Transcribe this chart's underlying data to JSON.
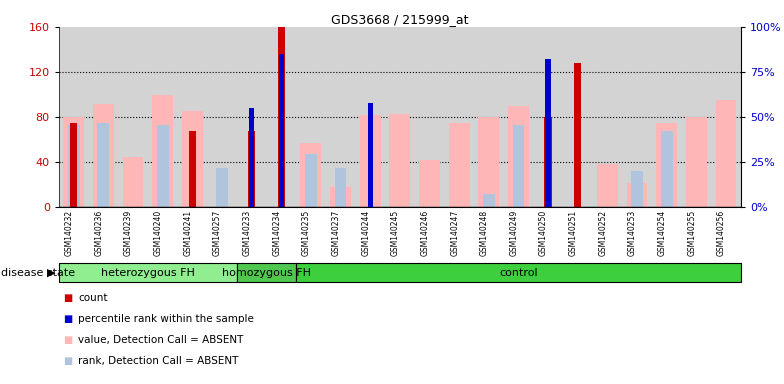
{
  "title": "GDS3668 / 215999_at",
  "samples": [
    "GSM140232",
    "GSM140236",
    "GSM140239",
    "GSM140240",
    "GSM140241",
    "GSM140257",
    "GSM140233",
    "GSM140234",
    "GSM140235",
    "GSM140237",
    "GSM140244",
    "GSM140245",
    "GSM140246",
    "GSM140247",
    "GSM140248",
    "GSM140249",
    "GSM140250",
    "GSM140251",
    "GSM140252",
    "GSM140253",
    "GSM140254",
    "GSM140255",
    "GSM140256"
  ],
  "groups": [
    {
      "label": "heterozygous FH",
      "start": 0,
      "end": 6,
      "color": "#90ee90"
    },
    {
      "label": "homozygous FH",
      "start": 6,
      "end": 8,
      "color": "#50c850"
    },
    {
      "label": "control",
      "start": 8,
      "end": 23,
      "color": "#3ecf3e"
    }
  ],
  "count_values": [
    75,
    0,
    0,
    0,
    68,
    0,
    68,
    160,
    0,
    0,
    0,
    0,
    0,
    0,
    0,
    0,
    80,
    128,
    0,
    0,
    0,
    0,
    0
  ],
  "percentile_values": [
    0,
    0,
    0,
    0,
    0,
    0,
    55,
    85,
    0,
    0,
    58,
    0,
    0,
    0,
    0,
    0,
    82,
    0,
    0,
    0,
    0,
    0,
    0
  ],
  "value_absent": [
    80,
    92,
    45,
    100,
    85,
    0,
    0,
    0,
    57,
    18,
    82,
    83,
    42,
    75,
    80,
    90,
    0,
    0,
    38,
    22,
    75,
    80,
    95
  ],
  "rank_absent": [
    73,
    75,
    0,
    73,
    0,
    35,
    0,
    0,
    47,
    35,
    0,
    0,
    0,
    0,
    12,
    73,
    0,
    0,
    0,
    32,
    68,
    0,
    0
  ],
  "left_ylim": [
    0,
    160
  ],
  "right_ylim": [
    0,
    100
  ],
  "left_yticks": [
    0,
    40,
    80,
    120,
    160
  ],
  "right_yticks": [
    0,
    25,
    50,
    75,
    100
  ],
  "left_color": "#cc0000",
  "right_color": "#0000cc",
  "count_color": "#cc0000",
  "percentile_color": "#0000cc",
  "value_absent_color": "#ffb6b6",
  "rank_absent_color": "#b0c4de",
  "bg_color": "#d3d3d3",
  "disease_state_label": "disease state",
  "legend_items": [
    {
      "color": "#cc0000",
      "label": "count"
    },
    {
      "color": "#0000cc",
      "label": "percentile rank within the sample"
    },
    {
      "color": "#ffb6b6",
      "label": "value, Detection Call = ABSENT"
    },
    {
      "color": "#b0c4de",
      "label": "rank, Detection Call = ABSENT"
    }
  ]
}
